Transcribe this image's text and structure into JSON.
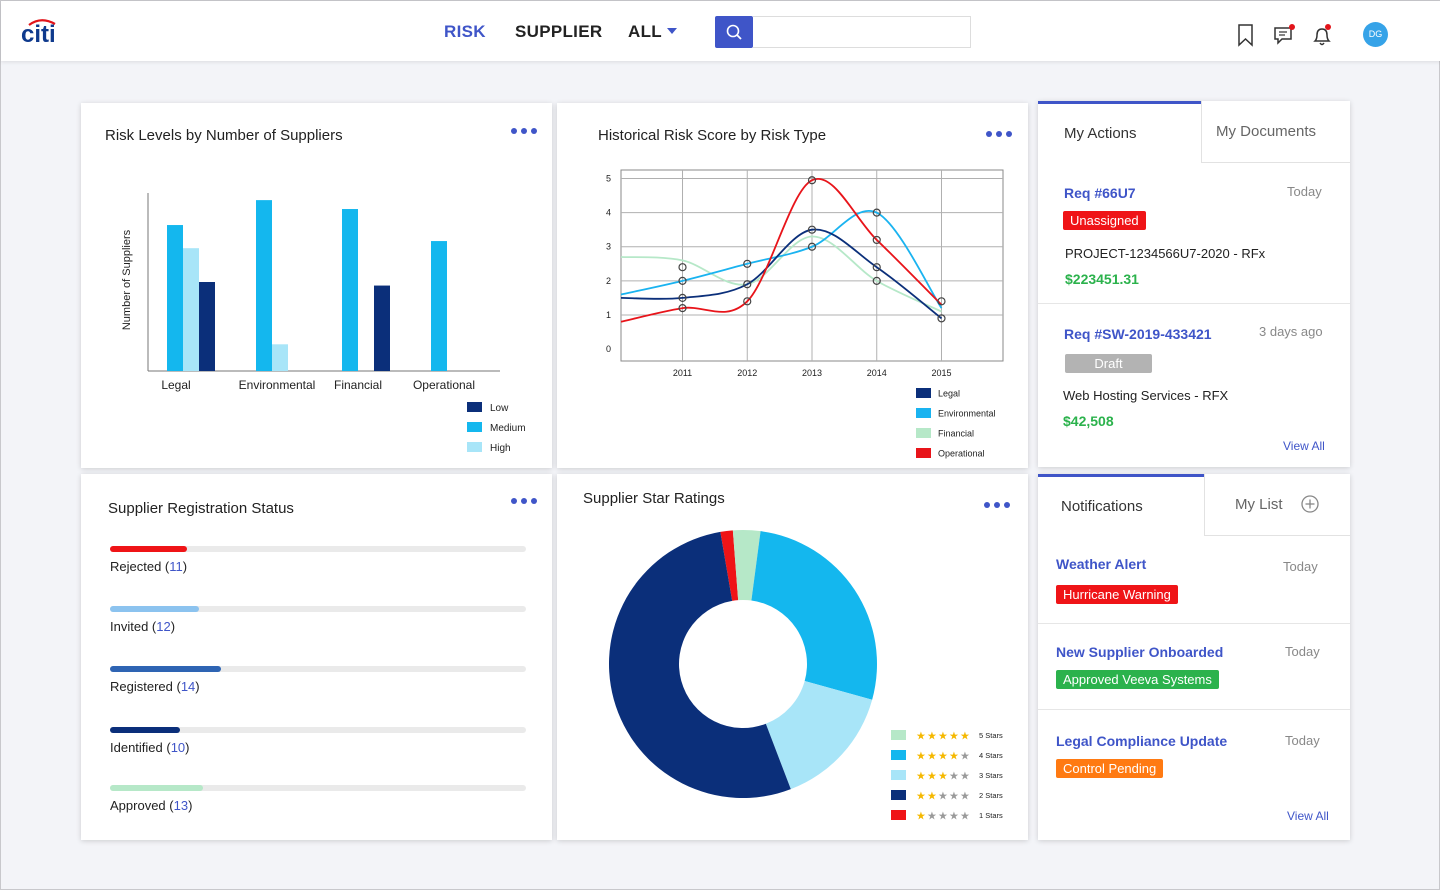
{
  "header": {
    "logo_text": "citi",
    "nav": [
      {
        "label": "RISK",
        "active": true
      },
      {
        "label": "SUPPLIER",
        "active": false
      },
      {
        "label": "ALL",
        "active": false
      }
    ],
    "search_placeholder": "",
    "avatar_initials": "DG",
    "icons": [
      "search-icon",
      "bookmark-icon",
      "chat-icon",
      "bell-icon"
    ]
  },
  "risk_levels": {
    "title": "Risk Levels by Number of Suppliers",
    "chart_data": {
      "type": "bar",
      "ylabel": "Number of Suppliers",
      "categories": [
        "Legal",
        "Environmental",
        "Financial",
        "Operational"
      ],
      "series": [
        {
          "name": "Medium",
          "color": "#14b7ee",
          "values": [
            82,
            96,
            91,
            73
          ]
        },
        {
          "name": "High",
          "color": "#a8e5f8",
          "values": [
            69,
            15,
            0,
            0
          ]
        },
        {
          "name": "Low",
          "color": "#0b2f7a",
          "values": [
            50,
            0,
            48,
            0
          ]
        }
      ],
      "legend": [
        {
          "name": "Low",
          "color": "#0b2f7a"
        },
        {
          "name": "Medium",
          "color": "#14b7ee"
        },
        {
          "name": "High",
          "color": "#a8e5f8"
        }
      ],
      "ylim": [
        0,
        100
      ],
      "legend_position": "bottom-right"
    }
  },
  "historical": {
    "title": "Historical Risk Score by Risk Type",
    "chart_data": {
      "type": "line",
      "x": [
        2011,
        2012,
        2013,
        2014,
        2015
      ],
      "xlim": [
        2010.05,
        2015.95
      ],
      "ylim": [
        -0.35,
        5.25
      ],
      "yticks": [
        0,
        1,
        2,
        3,
        4,
        5
      ],
      "grid": true,
      "legend_position": "bottom-right",
      "series": [
        {
          "name": "Legal",
          "color": "#0b2f7a",
          "values": [
            1.5,
            1.9,
            3.5,
            2.4,
            0.9
          ],
          "left": 1.5,
          "right": 0.9
        },
        {
          "name": "Environmental",
          "color": "#1ab3f0",
          "values": [
            2.0,
            2.5,
            3.0,
            4.0,
            1.2
          ],
          "left": 1.6,
          "right": 1.1
        },
        {
          "name": "Financial",
          "color": "#b6e8c8",
          "values": [
            2.6,
            1.9,
            3.3,
            2.0,
            1.1
          ],
          "left": 2.7,
          "right": 1.0
        },
        {
          "name": "Operational",
          "color": "#e8141a",
          "values": [
            1.2,
            1.4,
            4.95,
            3.2,
            1.3
          ],
          "left": 0.8,
          "right": 1.0
        }
      ],
      "markers": [
        [
          2011,
          2.4
        ],
        [
          2011,
          2.0
        ],
        [
          2011,
          1.5
        ],
        [
          2011,
          1.2
        ],
        [
          2012,
          2.5
        ],
        [
          2012,
          1.9
        ],
        [
          2012,
          1.4
        ],
        [
          2013,
          4.95
        ],
        [
          2013,
          3.5
        ],
        [
          2013,
          3.0
        ],
        [
          2014,
          4.0
        ],
        [
          2014,
          3.2
        ],
        [
          2014,
          2.4
        ],
        [
          2014,
          2.0
        ],
        [
          2015,
          1.4
        ],
        [
          2015,
          0.9
        ]
      ]
    }
  },
  "actions": {
    "tabs": [
      "My Actions",
      "My Documents"
    ],
    "items": [
      {
        "id": "Req #66U7",
        "time": "Today",
        "badge": "Unassigned",
        "badge_color": "#ef1417",
        "desc": "PROJECT-1234566U7-2020 - RFx",
        "amount": "$223451.31"
      },
      {
        "id": "Req #SW-2019-433421",
        "time": "3 days ago",
        "badge": "Draft",
        "badge_color": "#b3b3b3",
        "desc": "Web Hosting Services - RFX",
        "amount": "$42,508"
      }
    ],
    "view_all": "View All"
  },
  "registration": {
    "title": "Supplier Registration Status",
    "items": [
      {
        "label": "Rejected",
        "count": "11",
        "color": "#ef1417",
        "fraction": 0.185
      },
      {
        "label": "Invited",
        "count": "12",
        "color": "#8cc3ef",
        "fraction": 0.215
      },
      {
        "label": "Registered",
        "count": "14",
        "color": "#2e64b3",
        "fraction": 0.267
      },
      {
        "label": "Identified",
        "count": "10",
        "color": "#0b2f7a",
        "fraction": 0.168
      },
      {
        "label": "Approved",
        "count": "13",
        "color": "#b6e8c8",
        "fraction": 0.224
      }
    ]
  },
  "ratings": {
    "title": "Supplier Star Ratings",
    "chart_data": {
      "type": "pie",
      "donut": true,
      "slices": [
        {
          "label": "1 Stars",
          "stars": 1,
          "value": 1.5,
          "color": "#ef1417"
        },
        {
          "label": "5 Stars",
          "stars": 5,
          "value": 3.3,
          "color": "#b6e8c8"
        },
        {
          "label": "4 Stars",
          "stars": 4,
          "value": 27.2,
          "color": "#14b7ee"
        },
        {
          "label": "3 Stars",
          "stars": 3,
          "value": 14.9,
          "color": "#a8e5f8"
        },
        {
          "label": "2 Stars",
          "stars": 2,
          "value": 53.1,
          "color": "#0b2f7a"
        }
      ],
      "legend": [
        {
          "label": "5 Stars",
          "stars": 5,
          "color": "#b6e8c8"
        },
        {
          "label": "4 Stars",
          "stars": 4,
          "color": "#14b7ee"
        },
        {
          "label": "3 Stars",
          "stars": 3,
          "color": "#a8e5f8"
        },
        {
          "label": "2 Stars",
          "stars": 2,
          "color": "#0b2f7a"
        },
        {
          "label": "1 Stars",
          "stars": 1,
          "color": "#ef1417"
        }
      ],
      "legend_position": "bottom-right"
    }
  },
  "notifications": {
    "tabs": [
      "Notifications",
      "My List"
    ],
    "items": [
      {
        "title": "Weather Alert",
        "time": "Today",
        "badge": "Hurricane Warning",
        "badge_color": "#ef1417"
      },
      {
        "title": "New Supplier Onboarded",
        "time": "Today",
        "badge": "Approved Veeva Systems",
        "badge_color": "#2bb24c"
      },
      {
        "title": "Legal Compliance Update",
        "time": "Today",
        "badge": "Control Pending",
        "badge_color": "#ff7a12"
      }
    ],
    "view_all": "View All"
  }
}
